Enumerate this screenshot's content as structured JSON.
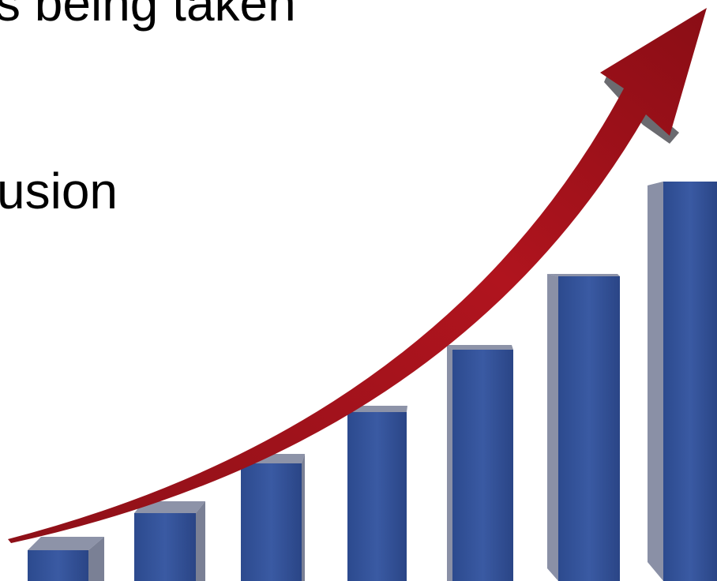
{
  "slide": {
    "lines": [
      "s being taken",
      "usion"
    ]
  }
}
